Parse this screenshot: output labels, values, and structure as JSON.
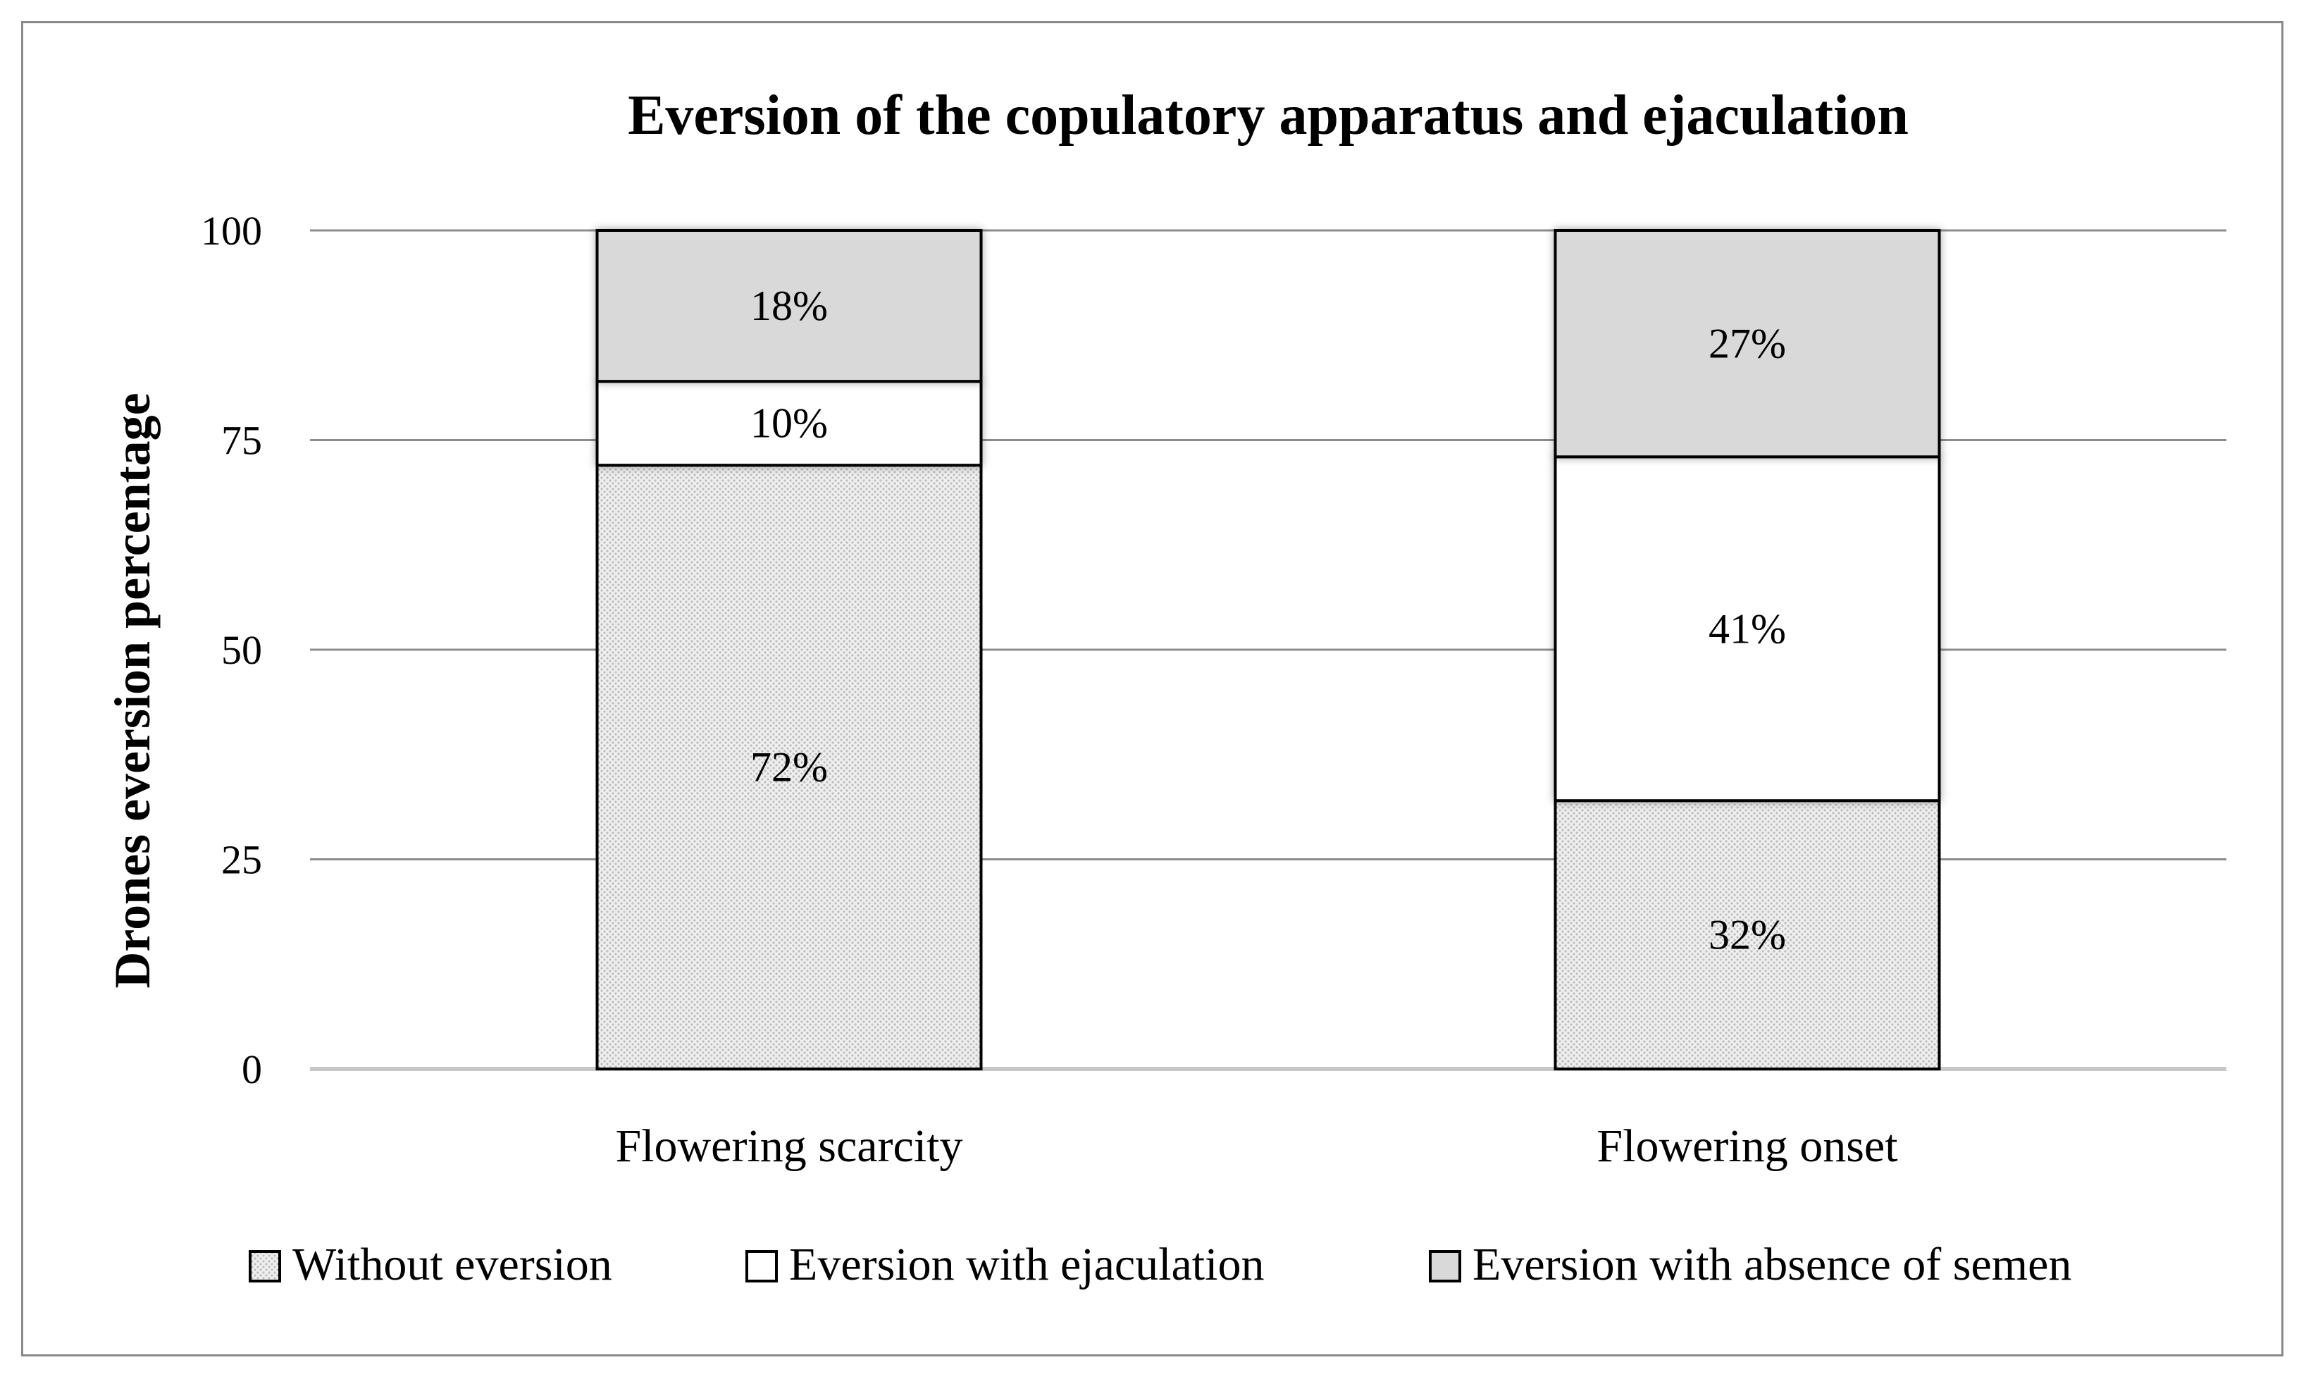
{
  "chart_data": {
    "type": "bar",
    "stacked": true,
    "title": "Eversion of the copulatory apparatus and ejaculation",
    "xlabel": "",
    "ylabel": "Drones eversion percentage",
    "ylim": [
      0,
      100
    ],
    "yticks": [
      "0",
      "25",
      "50",
      "75",
      "100"
    ],
    "categories": [
      "Flowering scarcity",
      "Flowering onset"
    ],
    "series": [
      {
        "name": "Without eversion",
        "values": [
          72,
          32
        ],
        "labels": [
          "72%",
          "32%"
        ],
        "fill": "dotted",
        "color": "#e4e4e4"
      },
      {
        "name": "Eversion with ejaculation",
        "values": [
          10,
          41
        ],
        "labels": [
          "10%",
          "41%"
        ],
        "fill": "solid",
        "color": "#ffffff"
      },
      {
        "name": "Eversion with absence of semen",
        "values": [
          18,
          27
        ],
        "labels": [
          "18%",
          "27%"
        ],
        "fill": "solid",
        "color": "#d9d9d9"
      }
    ],
    "grid": true,
    "legend": "bottom"
  }
}
